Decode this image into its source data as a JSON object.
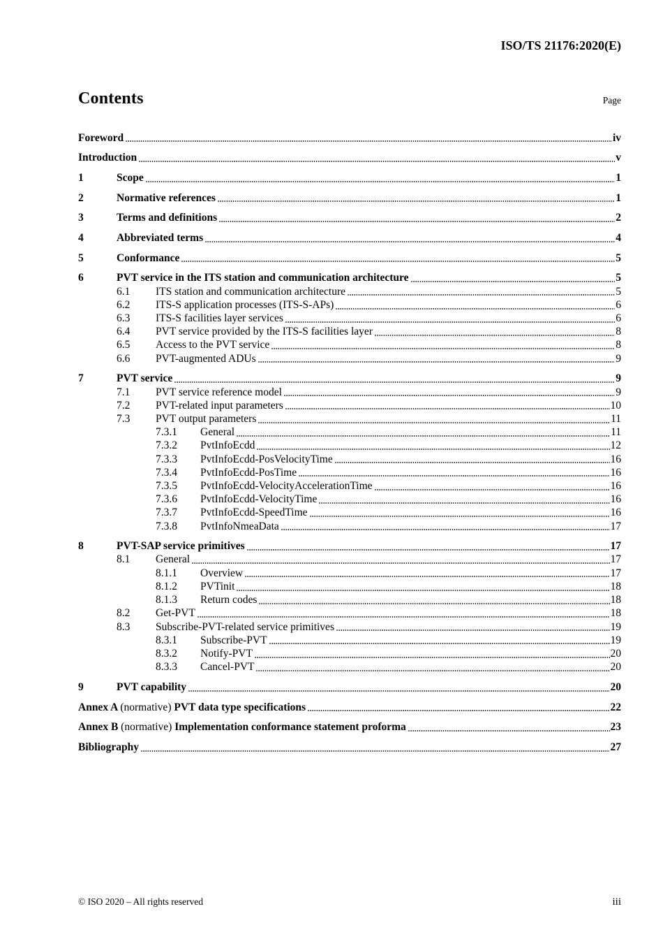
{
  "header": {
    "doc_ref": "ISO/TS 21176:2020(E)"
  },
  "toc": {
    "title": "Contents",
    "page_label": "Page",
    "entries": [
      {
        "level": 0,
        "major": true,
        "num": "",
        "parts": [
          {
            "text": "Foreword",
            "bold": true
          }
        ],
        "page": "iv"
      },
      {
        "level": 0,
        "major": true,
        "num": "",
        "parts": [
          {
            "text": "Introduction",
            "bold": true
          }
        ],
        "page": "v"
      },
      {
        "level": 1,
        "major": true,
        "num": "1",
        "parts": [
          {
            "text": "Scope",
            "bold": true
          }
        ],
        "page": "1"
      },
      {
        "level": 1,
        "major": true,
        "num": "2",
        "parts": [
          {
            "text": "Normative references",
            "bold": true
          }
        ],
        "page": "1"
      },
      {
        "level": 1,
        "major": true,
        "num": "3",
        "parts": [
          {
            "text": "Terms and definitions",
            "bold": true
          }
        ],
        "page": "2"
      },
      {
        "level": 1,
        "major": true,
        "num": "4",
        "parts": [
          {
            "text": "Abbreviated terms",
            "bold": true
          }
        ],
        "page": "4"
      },
      {
        "level": 1,
        "major": true,
        "num": "5",
        "parts": [
          {
            "text": "Conformance",
            "bold": true
          }
        ],
        "page": "5"
      },
      {
        "level": 1,
        "major": true,
        "num": "6",
        "parts": [
          {
            "text": "PVT service in the ITS station and communication architecture",
            "bold": true
          }
        ],
        "page": "5"
      },
      {
        "level": 2,
        "major": false,
        "num": "6.1",
        "parts": [
          {
            "text": "ITS station and communication architecture",
            "bold": false
          }
        ],
        "page": "5"
      },
      {
        "level": 2,
        "major": false,
        "num": "6.2",
        "parts": [
          {
            "text": "ITS-S application processes (ITS-S-APs)",
            "bold": false
          }
        ],
        "page": "6"
      },
      {
        "level": 2,
        "major": false,
        "num": "6.3",
        "parts": [
          {
            "text": "ITS-S facilities layer services",
            "bold": false
          }
        ],
        "page": "6"
      },
      {
        "level": 2,
        "major": false,
        "num": "6.4",
        "parts": [
          {
            "text": "PVT service provided by the ITS-S facilities layer",
            "bold": false
          }
        ],
        "page": "8"
      },
      {
        "level": 2,
        "major": false,
        "num": "6.5",
        "parts": [
          {
            "text": "Access to the PVT service",
            "bold": false
          }
        ],
        "page": "8"
      },
      {
        "level": 2,
        "major": false,
        "num": "6.6",
        "parts": [
          {
            "text": "PVT-augmented ADUs",
            "bold": false
          }
        ],
        "page": "9"
      },
      {
        "level": 1,
        "major": true,
        "num": "7",
        "parts": [
          {
            "text": "PVT service",
            "bold": true
          }
        ],
        "page": "9"
      },
      {
        "level": 2,
        "major": false,
        "num": "7.1",
        "parts": [
          {
            "text": "PVT service reference model",
            "bold": false
          }
        ],
        "page": "9"
      },
      {
        "level": 2,
        "major": false,
        "num": "7.2",
        "parts": [
          {
            "text": "PVT-related input parameters",
            "bold": false
          }
        ],
        "page": "10"
      },
      {
        "level": 2,
        "major": false,
        "num": "7.3",
        "parts": [
          {
            "text": "PVT output parameters",
            "bold": false
          }
        ],
        "page": "11"
      },
      {
        "level": 3,
        "major": false,
        "num": "7.3.1",
        "parts": [
          {
            "text": "General",
            "bold": false
          }
        ],
        "page": "11"
      },
      {
        "level": 3,
        "major": false,
        "num": "7.3.2",
        "parts": [
          {
            "text": "PvtInfoEcdd",
            "bold": false
          }
        ],
        "page": "12"
      },
      {
        "level": 3,
        "major": false,
        "num": "7.3.3",
        "parts": [
          {
            "text": "PvtInfoEcdd-PosVelocityTime",
            "bold": false
          }
        ],
        "page": "16"
      },
      {
        "level": 3,
        "major": false,
        "num": "7.3.4",
        "parts": [
          {
            "text": "PvtInfoEcdd-PosTime",
            "bold": false
          }
        ],
        "page": "16"
      },
      {
        "level": 3,
        "major": false,
        "num": "7.3.5",
        "parts": [
          {
            "text": "PvtInfoEcdd-VelocityAccelerationTime",
            "bold": false
          }
        ],
        "page": "16"
      },
      {
        "level": 3,
        "major": false,
        "num": "7.3.6",
        "parts": [
          {
            "text": "PvtInfoEcdd-VelocityTime",
            "bold": false
          }
        ],
        "page": "16"
      },
      {
        "level": 3,
        "major": false,
        "num": "7.3.7",
        "parts": [
          {
            "text": "PvtInfoEcdd-SpeedTime",
            "bold": false
          }
        ],
        "page": "16"
      },
      {
        "level": 3,
        "major": false,
        "num": "7.3.8",
        "parts": [
          {
            "text": "PvtInfoNmeaData",
            "bold": false
          }
        ],
        "page": "17"
      },
      {
        "level": 1,
        "major": true,
        "num": "8",
        "parts": [
          {
            "text": "PVT-SAP service primitives",
            "bold": true
          }
        ],
        "page": "17"
      },
      {
        "level": 2,
        "major": false,
        "num": "8.1",
        "parts": [
          {
            "text": "General",
            "bold": false
          }
        ],
        "page": "17"
      },
      {
        "level": 3,
        "major": false,
        "num": "8.1.1",
        "parts": [
          {
            "text": "Overview",
            "bold": false
          }
        ],
        "page": "17"
      },
      {
        "level": 3,
        "major": false,
        "num": "8.1.2",
        "parts": [
          {
            "text": "PVTinit",
            "bold": false
          }
        ],
        "page": "18"
      },
      {
        "level": 3,
        "major": false,
        "num": "8.1.3",
        "parts": [
          {
            "text": "Return codes",
            "bold": false
          }
        ],
        "page": "18"
      },
      {
        "level": 2,
        "major": false,
        "num": "8.2",
        "parts": [
          {
            "text": "Get-PVT",
            "bold": false
          }
        ],
        "page": "18"
      },
      {
        "level": 2,
        "major": false,
        "num": "8.3",
        "parts": [
          {
            "text": "Subscribe-PVT-related service primitives",
            "bold": false
          }
        ],
        "page": "19"
      },
      {
        "level": 3,
        "major": false,
        "num": "8.3.1",
        "parts": [
          {
            "text": "Subscribe-PVT",
            "bold": false
          }
        ],
        "page": "19"
      },
      {
        "level": 3,
        "major": false,
        "num": "8.3.2",
        "parts": [
          {
            "text": "Notify-PVT",
            "bold": false
          }
        ],
        "page": "20"
      },
      {
        "level": 3,
        "major": false,
        "num": "8.3.3",
        "parts": [
          {
            "text": "Cancel-PVT",
            "bold": false
          }
        ],
        "page": "20"
      },
      {
        "level": 1,
        "major": true,
        "num": "9",
        "parts": [
          {
            "text": "PVT capability",
            "bold": true
          }
        ],
        "page": "20"
      },
      {
        "level": 0,
        "major": true,
        "num": "",
        "parts": [
          {
            "text": "Annex A ",
            "bold": true
          },
          {
            "text": "(normative) ",
            "bold": false
          },
          {
            "text": "PVT data type specifications",
            "bold": true
          }
        ],
        "page": "22"
      },
      {
        "level": 0,
        "major": true,
        "num": "",
        "parts": [
          {
            "text": "Annex B ",
            "bold": true
          },
          {
            "text": "(normative) ",
            "bold": false
          },
          {
            "text": "Implementation conformance statement proforma",
            "bold": true
          }
        ],
        "page": "23"
      },
      {
        "level": 0,
        "major": true,
        "num": "",
        "parts": [
          {
            "text": "Bibliography",
            "bold": true
          }
        ],
        "page": "27"
      }
    ]
  },
  "footer": {
    "copyright": "© ISO 2020 – All rights reserved",
    "page_number": "iii"
  }
}
